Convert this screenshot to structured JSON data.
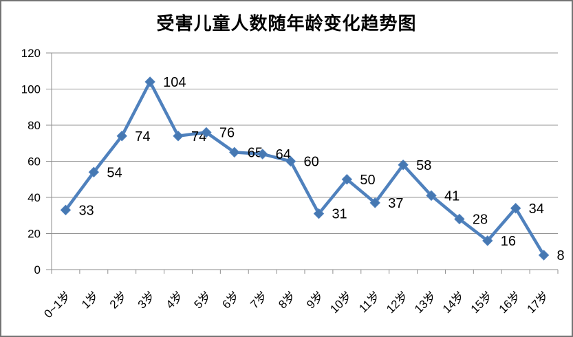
{
  "frame": {
    "background": "#ffffff",
    "border_color": "#747474"
  },
  "chart_data": {
    "type": "line",
    "title": "受害儿童人数随年龄变化趋势图",
    "categories": [
      "0~1岁",
      "1岁",
      "2岁",
      "3岁",
      "4岁",
      "5岁",
      "6岁",
      "7岁",
      "8岁",
      "9岁",
      "10岁",
      "11岁",
      "12岁",
      "13岁",
      "14岁",
      "15岁",
      "16岁",
      "17岁"
    ],
    "values": [
      33,
      54,
      74,
      104,
      74,
      76,
      65,
      64,
      60,
      31,
      50,
      37,
      58,
      41,
      28,
      16,
      34,
      8
    ],
    "xlabel": "",
    "ylabel": "",
    "ylim": [
      0,
      120
    ],
    "yticks": [
      0,
      20,
      40,
      60,
      80,
      100,
      120
    ],
    "grid": true,
    "legend": "none",
    "marker": "diamond",
    "data_label_position": "right",
    "colors": {
      "line": "#4F81BD",
      "marker": "#4678B2",
      "grid": "#969696",
      "axis": "#8E8E8E",
      "text": "#000000"
    }
  }
}
